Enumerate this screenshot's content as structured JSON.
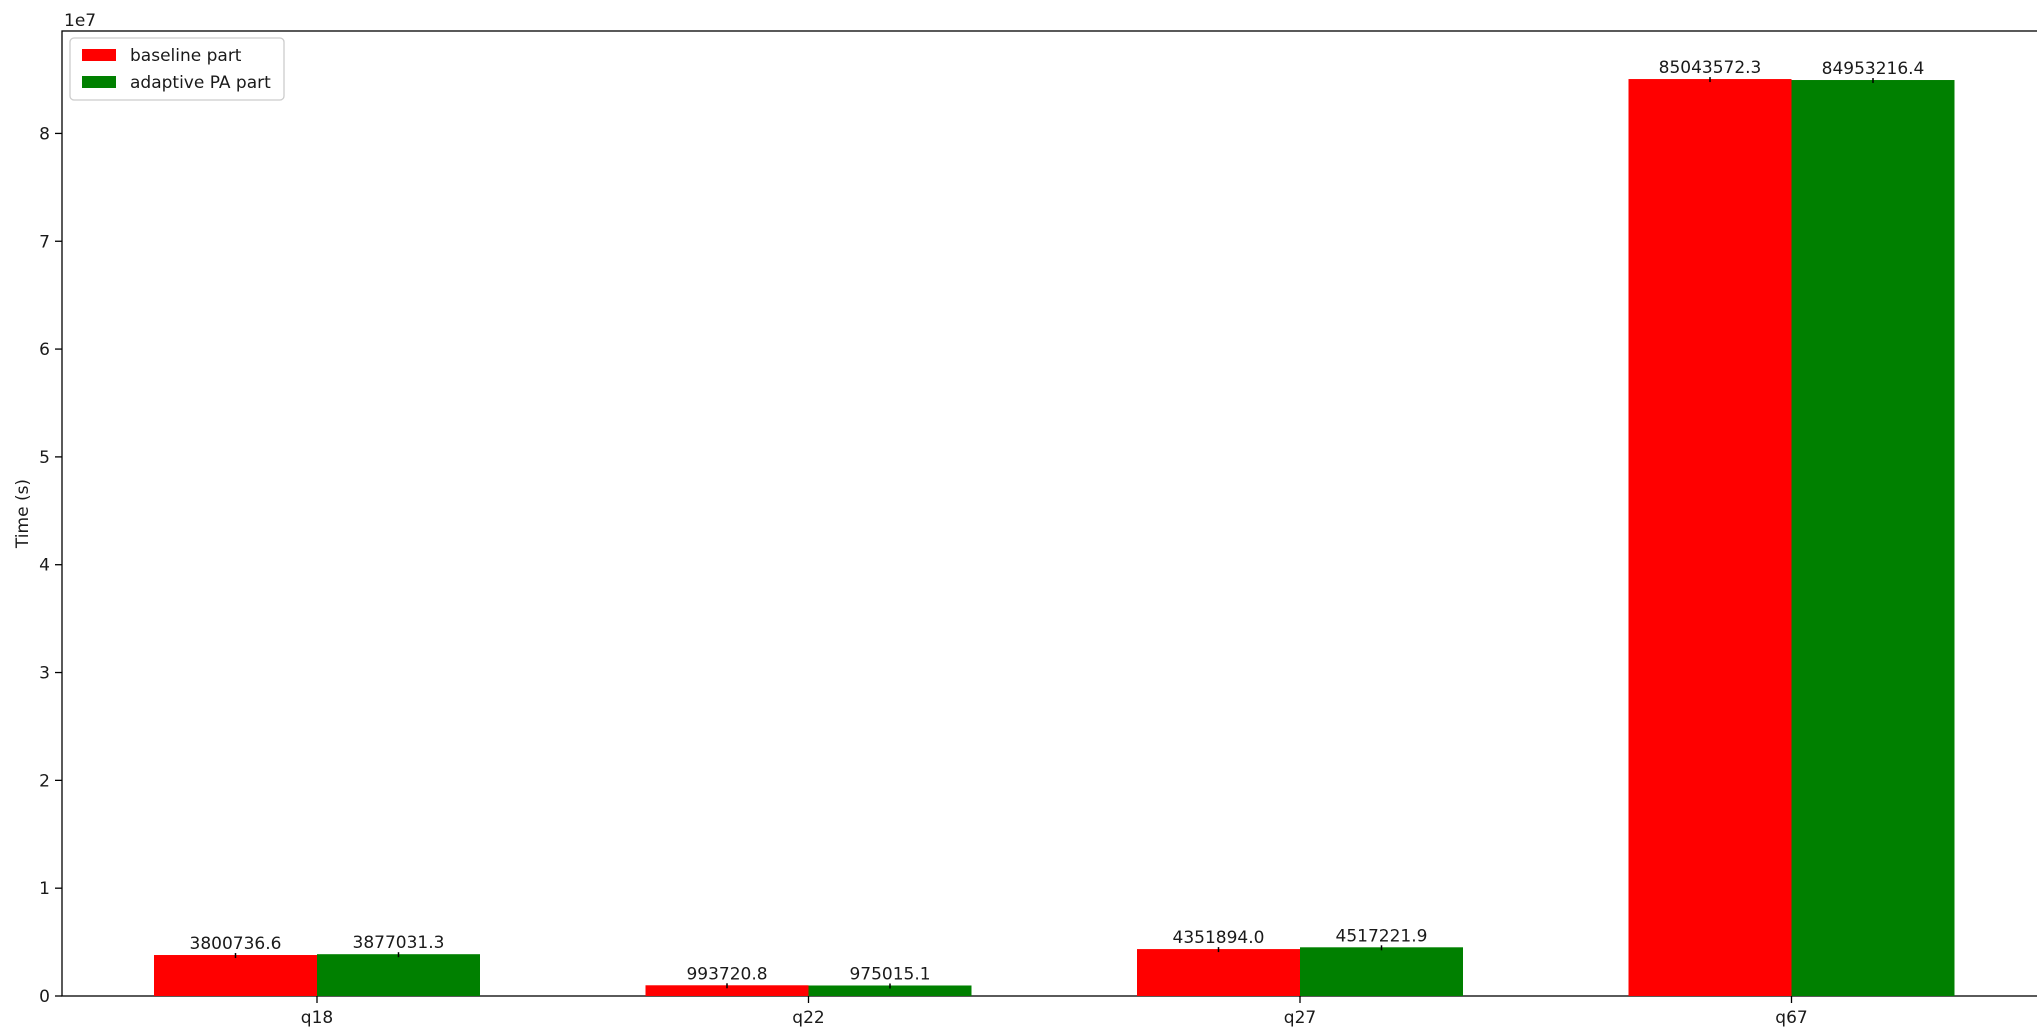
{
  "chart_data": {
    "type": "bar",
    "title": "",
    "xlabel": "",
    "ylabel": "Time (s)",
    "y_offset_label": "1e7",
    "ylim": [
      0,
      89500000
    ],
    "yticks": [
      {
        "value": 0,
        "label": "0"
      },
      {
        "value": 10000000,
        "label": "1"
      },
      {
        "value": 20000000,
        "label": "2"
      },
      {
        "value": 30000000,
        "label": "3"
      },
      {
        "value": 40000000,
        "label": "4"
      },
      {
        "value": 50000000,
        "label": "5"
      },
      {
        "value": 60000000,
        "label": "6"
      },
      {
        "value": 70000000,
        "label": "7"
      },
      {
        "value": 80000000,
        "label": "8"
      }
    ],
    "categories": [
      "q18",
      "q22",
      "q27",
      "q67"
    ],
    "grid": false,
    "legend_position": "top-left",
    "series": [
      {
        "name": "baseline part",
        "color": "#ff0000",
        "values": [
          3800736.6,
          993720.8,
          4351894.0,
          85043572.3
        ],
        "labels": [
          "3800736.6",
          "993720.8",
          "4351894.0",
          "85043572.3"
        ]
      },
      {
        "name": "adaptive PA part",
        "color": "#008000",
        "values": [
          3877031.3,
          975015.1,
          4517221.9,
          84953216.4
        ],
        "labels": [
          "3877031.3",
          "975015.1",
          "4517221.9",
          "84953216.4"
        ]
      }
    ]
  }
}
